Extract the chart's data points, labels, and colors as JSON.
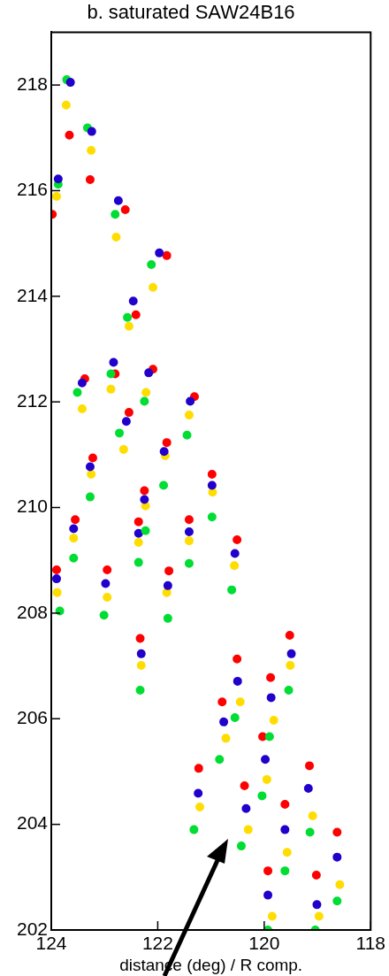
{
  "chart_data": {
    "type": "scatter",
    "title": "b. saturated SAW24B16",
    "xlabel": "distance (deg) / R comp.",
    "xlim": [
      124,
      118
    ],
    "ylim": [
      202,
      219
    ],
    "xticks": [
      124,
      122,
      120,
      118
    ],
    "yticks": [
      202,
      204,
      206,
      208,
      210,
      212,
      214,
      216,
      218
    ],
    "grid": false,
    "legend": false,
    "marker": "circle",
    "series": [
      {
        "x": [
          123.66,
          123.72,
          123.71,
          123.64
        ],
        "values": [
          217.05,
          217.62,
          218.1,
          218.05
        ],
        "colors": [
          "#ff0000",
          "#ffdd00",
          "#00dd33",
          "#2200cc"
        ]
      },
      {
        "x": [
          123.27,
          123.25,
          123.32,
          123.24
        ],
        "values": [
          216.21,
          216.76,
          217.19,
          217.12
        ],
        "colors": [
          "#ff0000",
          "#ffdd00",
          "#00dd33",
          "#2200cc"
        ]
      },
      {
        "x": [
          123.98,
          123.9,
          123.87,
          123.87
        ],
        "values": [
          215.55,
          215.89,
          216.12,
          216.22
        ],
        "colors": [
          "#ff0000",
          "#ffdd00",
          "#00dd33",
          "#2200cc"
        ]
      },
      {
        "x": [
          122.61,
          122.78,
          122.8,
          122.74
        ],
        "values": [
          215.64,
          215.12,
          215.55,
          215.81
        ],
        "colors": [
          "#ff0000",
          "#ffdd00",
          "#00dd33",
          "#2200cc"
        ]
      },
      {
        "x": [
          121.83,
          122.09,
          122.12,
          121.97
        ],
        "values": [
          214.77,
          214.17,
          214.6,
          214.82
        ],
        "colors": [
          "#ff0000",
          "#ffdd00",
          "#00dd33",
          "#2200cc"
        ]
      },
      {
        "x": [
          122.41,
          122.54,
          122.57,
          122.46
        ],
        "values": [
          213.65,
          213.43,
          213.6,
          213.91
        ],
        "colors": [
          "#ff0000",
          "#ffdd00",
          "#00dd33",
          "#2200cc"
        ]
      },
      {
        "x": [
          122.8,
          122.88,
          122.88,
          122.83
        ],
        "values": [
          212.53,
          212.24,
          212.53,
          212.75
        ],
        "colors": [
          "#ff0000",
          "#ffdd00",
          "#00dd33",
          "#2200cc"
        ]
      },
      {
        "x": [
          123.37,
          123.42,
          123.51,
          123.42
        ],
        "values": [
          212.44,
          211.87,
          212.18,
          212.36
        ],
        "colors": [
          "#ff0000",
          "#ffdd00",
          "#00dd33",
          "#2200cc"
        ]
      },
      {
        "x": [
          122.09,
          122.22,
          122.25,
          122.17
        ],
        "values": [
          212.62,
          212.18,
          212.01,
          212.55
        ],
        "colors": [
          "#ff0000",
          "#ffdd00",
          "#00dd33",
          "#2200cc"
        ]
      },
      {
        "x": [
          121.31,
          121.41,
          121.45,
          121.39
        ],
        "values": [
          212.1,
          211.75,
          211.37,
          212.01
        ],
        "colors": [
          "#ff0000",
          "#ffdd00",
          "#00dd33",
          "#2200cc"
        ]
      },
      {
        "x": [
          122.54,
          122.64,
          122.72,
          122.59
        ],
        "values": [
          211.8,
          211.1,
          211.41,
          211.63
        ],
        "colors": [
          "#ff0000",
          "#ffdd00",
          "#00dd33",
          "#2200cc"
        ]
      },
      {
        "x": [
          121.83,
          121.86,
          121.89,
          121.88
        ],
        "values": [
          211.23,
          210.98,
          210.42,
          211.06
        ],
        "colors": [
          "#ff0000",
          "#ffdd00",
          "#00dd33",
          "#2200cc"
        ]
      },
      {
        "x": [
          123.22,
          123.25,
          123.27,
          123.27
        ],
        "values": [
          210.94,
          210.63,
          210.2,
          210.77
        ],
        "colors": [
          "#ff0000",
          "#ffdd00",
          "#00dd33",
          "#2200cc"
        ]
      },
      {
        "x": [
          120.98,
          120.97,
          120.98,
          120.98
        ],
        "values": [
          210.63,
          210.29,
          209.82,
          210.42
        ],
        "colors": [
          "#ff0000",
          "#ffdd00",
          "#00dd33",
          "#2200cc"
        ]
      },
      {
        "x": [
          122.25,
          122.23,
          122.23,
          122.25
        ],
        "values": [
          210.32,
          210.03,
          209.56,
          210.15
        ],
        "colors": [
          "#ff0000",
          "#ffdd00",
          "#00dd33",
          "#2200cc"
        ]
      },
      {
        "x": [
          123.55,
          123.58,
          123.58,
          123.58
        ],
        "values": [
          209.77,
          209.42,
          209.04,
          209.6
        ],
        "colors": [
          "#ff0000",
          "#ffdd00",
          "#00dd33",
          "#2200cc"
        ]
      },
      {
        "x": [
          122.36,
          122.36,
          122.36,
          122.36
        ],
        "values": [
          209.73,
          209.34,
          208.96,
          209.51
        ],
        "colors": [
          "#ff0000",
          "#ffdd00",
          "#00dd33",
          "#2200cc"
        ]
      },
      {
        "x": [
          121.41,
          121.41,
          121.41,
          121.41
        ],
        "values": [
          209.77,
          209.37,
          208.94,
          209.54
        ],
        "colors": [
          "#ff0000",
          "#ffdd00",
          "#00dd33",
          "#2200cc"
        ]
      },
      {
        "x": [
          120.51,
          120.56,
          120.61,
          120.55
        ],
        "values": [
          209.39,
          208.9,
          208.44,
          209.13
        ],
        "colors": [
          "#ff0000",
          "#ffdd00",
          "#00dd33",
          "#2200cc"
        ]
      },
      {
        "x": [
          123.9,
          123.89,
          123.84,
          123.9
        ],
        "values": [
          208.82,
          208.39,
          208.04,
          208.65
        ],
        "colors": [
          "#ff0000",
          "#ffdd00",
          "#00dd33",
          "#2200cc"
        ]
      },
      {
        "x": [
          122.95,
          122.95,
          123.01,
          122.98
        ],
        "values": [
          208.82,
          208.3,
          207.96,
          208.56
        ],
        "colors": [
          "#ff0000",
          "#ffdd00",
          "#00dd33",
          "#2200cc"
        ]
      },
      {
        "x": [
          121.79,
          121.83,
          121.81,
          121.81
        ],
        "values": [
          208.8,
          208.39,
          207.9,
          208.52
        ],
        "colors": [
          "#ff0000",
          "#ffdd00",
          "#00dd33",
          "#2200cc"
        ]
      },
      {
        "x": [
          122.33,
          122.31,
          122.33,
          122.31
        ],
        "values": [
          207.52,
          207.01,
          206.54,
          207.23
        ],
        "colors": [
          "#ff0000",
          "#ffdd00",
          "#00dd33",
          "#2200cc"
        ]
      },
      {
        "x": [
          119.52,
          119.51,
          119.54,
          119.49
        ],
        "values": [
          207.58,
          207.01,
          206.54,
          207.23
        ],
        "colors": [
          "#ff0000",
          "#ffdd00",
          "#00dd33",
          "#2200cc"
        ]
      },
      {
        "x": [
          120.51,
          120.45,
          120.55,
          120.5
        ],
        "values": [
          207.13,
          206.32,
          206.02,
          206.71
        ],
        "colors": [
          "#ff0000",
          "#ffdd00",
          "#00dd33",
          "#2200cc"
        ]
      },
      {
        "x": [
          119.88,
          119.82,
          119.9,
          119.87
        ],
        "values": [
          206.78,
          205.97,
          205.66,
          206.4
        ],
        "colors": [
          "#ff0000",
          "#ffdd00",
          "#00dd33",
          "#2200cc"
        ]
      },
      {
        "x": [
          120.79,
          120.72,
          120.84,
          120.76
        ],
        "values": [
          206.32,
          205.63,
          205.23,
          205.94
        ],
        "colors": [
          "#ff0000",
          "#ffdd00",
          "#00dd33",
          "#2200cc"
        ]
      },
      {
        "x": [
          120.03,
          119.95,
          120.04,
          119.98
        ],
        "values": [
          205.66,
          204.85,
          204.54,
          205.23
        ],
        "colors": [
          "#ff0000",
          "#ffdd00",
          "#00dd33",
          "#2200cc"
        ]
      },
      {
        "x": [
          121.23,
          121.21,
          121.32,
          121.24
        ],
        "values": [
          205.06,
          204.33,
          203.9,
          204.59
        ],
        "colors": [
          "#ff0000",
          "#ffdd00",
          "#00dd33",
          "#2200cc"
        ]
      },
      {
        "x": [
          119.15,
          119.09,
          119.14,
          119.17
        ],
        "values": [
          205.11,
          204.16,
          203.85,
          204.68
        ],
        "colors": [
          "#ff0000",
          "#ffdd00",
          "#00dd33",
          "#2200cc"
        ]
      },
      {
        "x": [
          120.37,
          120.3,
          120.43,
          120.34
        ],
        "values": [
          204.73,
          203.9,
          203.59,
          204.3
        ],
        "colors": [
          "#ff0000",
          "#ffdd00",
          "#00dd33",
          "#2200cc"
        ]
      },
      {
        "x": [
          119.61,
          119.57,
          119.61,
          119.61
        ],
        "values": [
          204.38,
          203.47,
          203.12,
          203.9
        ],
        "colors": [
          "#ff0000",
          "#ffdd00",
          "#00dd33",
          "#2200cc"
        ]
      },
      {
        "x": [
          118.63,
          118.58,
          118.63,
          118.63
        ],
        "values": [
          203.85,
          202.86,
          202.55,
          203.38
        ],
        "colors": [
          "#ff0000",
          "#ffdd00",
          "#00dd33",
          "#2200cc"
        ]
      },
      {
        "x": [
          119.93,
          119.85,
          119.93,
          119.93
        ],
        "values": [
          203.12,
          202.26,
          202.0,
          202.66
        ],
        "colors": [
          "#ff0000",
          "#ffdd00",
          "#00dd33",
          "#2200cc"
        ]
      },
      {
        "x": [
          119.02,
          118.97,
          119.04,
          119.01
        ],
        "values": [
          203.04,
          202.26,
          202.0,
          202.48
        ],
        "colors": [
          "#ff0000",
          "#ffdd00",
          "#00dd33",
          "#2200cc"
        ]
      }
    ]
  }
}
